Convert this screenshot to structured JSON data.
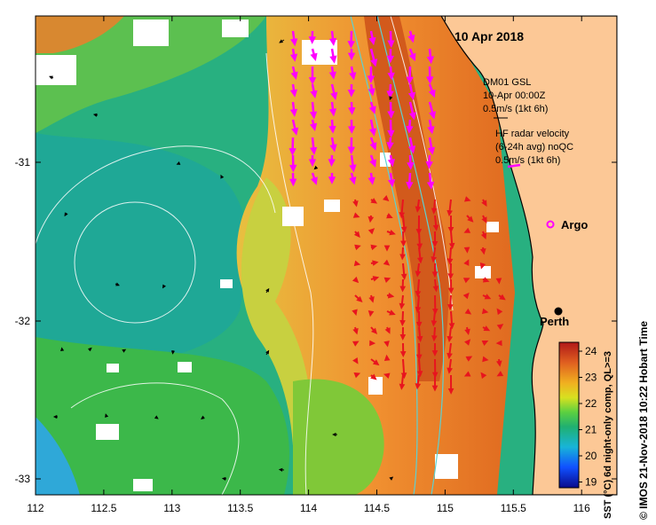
{
  "map": {
    "date_label": "10 Apr 2018",
    "credit": "© IMOS 21-Nov-2018 10:22 Hobart Time",
    "x_ticks": [
      "112",
      "112.5",
      "113",
      "113.5",
      "114",
      "114.5",
      "115",
      "115.5",
      "116"
    ],
    "y_ticks": [
      "-31",
      "-32",
      "-33"
    ],
    "legend": {
      "line1": "DM01 GSL",
      "line2": "10-Apr 00:00Z",
      "line3": "0.5m/s (1kt 6h)",
      "line4": "HF radar velocity",
      "line5": "(6-24h avg) noQC",
      "line6": "0.5m/s (1kt 6h)"
    },
    "argo_label": "Argo",
    "perth_label": "Perth",
    "colorbar": {
      "title": "SST (°C) 6d night-only comp, QL>=3",
      "ticks": [
        "24",
        "23",
        "22",
        "21",
        "20",
        "19"
      ]
    },
    "colors": {
      "land": "#fcc896",
      "hf_vector": "#ff00ff",
      "glider_vector": "#e8141e",
      "bathymetry": "#5fd0d0"
    }
  }
}
